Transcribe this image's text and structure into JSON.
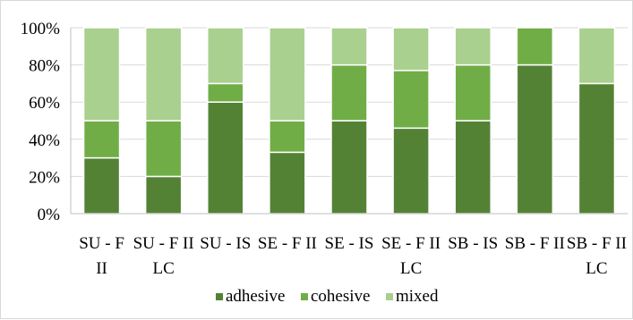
{
  "chart_data": {
    "type": "bar",
    "stacked": true,
    "percent": true,
    "title": "",
    "xlabel": "",
    "ylabel": "",
    "ylim": [
      0,
      100
    ],
    "yticks": [
      "0%",
      "20%",
      "40%",
      "60%",
      "80%",
      "100%"
    ],
    "grid": true,
    "legend_position": "bottom",
    "categories": [
      [
        "SU - F",
        "II"
      ],
      [
        "SU - F II",
        "LC"
      ],
      [
        "SU - IS"
      ],
      [
        "SE - F II"
      ],
      [
        "SE - IS"
      ],
      [
        "SE - F II",
        "LC"
      ],
      [
        "SB - IS"
      ],
      [
        "SB - F II"
      ],
      [
        "SB - F II",
        "LC"
      ]
    ],
    "series": [
      {
        "name": "adhesive",
        "color": "#548235",
        "values": [
          30,
          20,
          60,
          33,
          50,
          46,
          50,
          80,
          70
        ]
      },
      {
        "name": "cohesive",
        "color": "#70ad47",
        "values": [
          20,
          30,
          10,
          17,
          30,
          31,
          30,
          20,
          0
        ]
      },
      {
        "name": "mixed",
        "color": "#a9d08e",
        "values": [
          50,
          50,
          30,
          50,
          20,
          23,
          20,
          0,
          30
        ]
      }
    ]
  }
}
